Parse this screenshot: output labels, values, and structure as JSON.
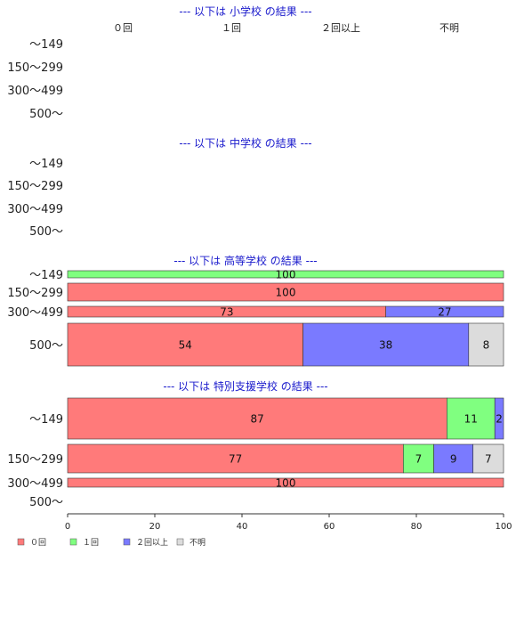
{
  "chart_data": {
    "type": "bar",
    "orientation": "horizontal",
    "stacked": true,
    "series_names": [
      "０回",
      "１回",
      "２回以上",
      "不明"
    ],
    "colors": [
      "#ff7a7a",
      "#80ff80",
      "#7a7aff",
      "#dcdcdc"
    ],
    "xlim": [
      0,
      100
    ],
    "xticks": [
      "0",
      "20",
      "40",
      "60",
      "80",
      "100"
    ],
    "legend_position": "bottom-left",
    "header_labels": [
      "０回",
      "１回",
      "２回以上",
      "不明"
    ],
    "panels": [
      {
        "title": "--- 以下は 小学校 の結果 ---",
        "categories": [
          "～149",
          "150～299",
          "300～499",
          "500～"
        ],
        "rows": [
          null,
          null,
          null,
          null
        ]
      },
      {
        "title": "--- 以下は 中学校 の結果 ---",
        "categories": [
          "～149",
          "150～299",
          "300～499",
          "500～"
        ],
        "rows": [
          null,
          null,
          null,
          null
        ]
      },
      {
        "title": "--- 以下は 高等学校 の結果 ---",
        "categories": [
          "～149",
          "150～299",
          "300～499",
          "500～"
        ],
        "rows": [
          [
            0,
            100,
            0,
            0
          ],
          [
            100,
            0,
            0,
            0
          ],
          [
            73,
            0,
            27,
            0
          ],
          [
            54,
            0,
            38,
            8
          ]
        ]
      },
      {
        "title": "--- 以下は 特別支援学校 の結果 ---",
        "categories": [
          "～149",
          "150～299",
          "300～499",
          "500～"
        ],
        "rows": [
          [
            87,
            11,
            2,
            0
          ],
          [
            77,
            7,
            9,
            7
          ],
          [
            100,
            0,
            0,
            0
          ],
          null
        ]
      }
    ]
  }
}
